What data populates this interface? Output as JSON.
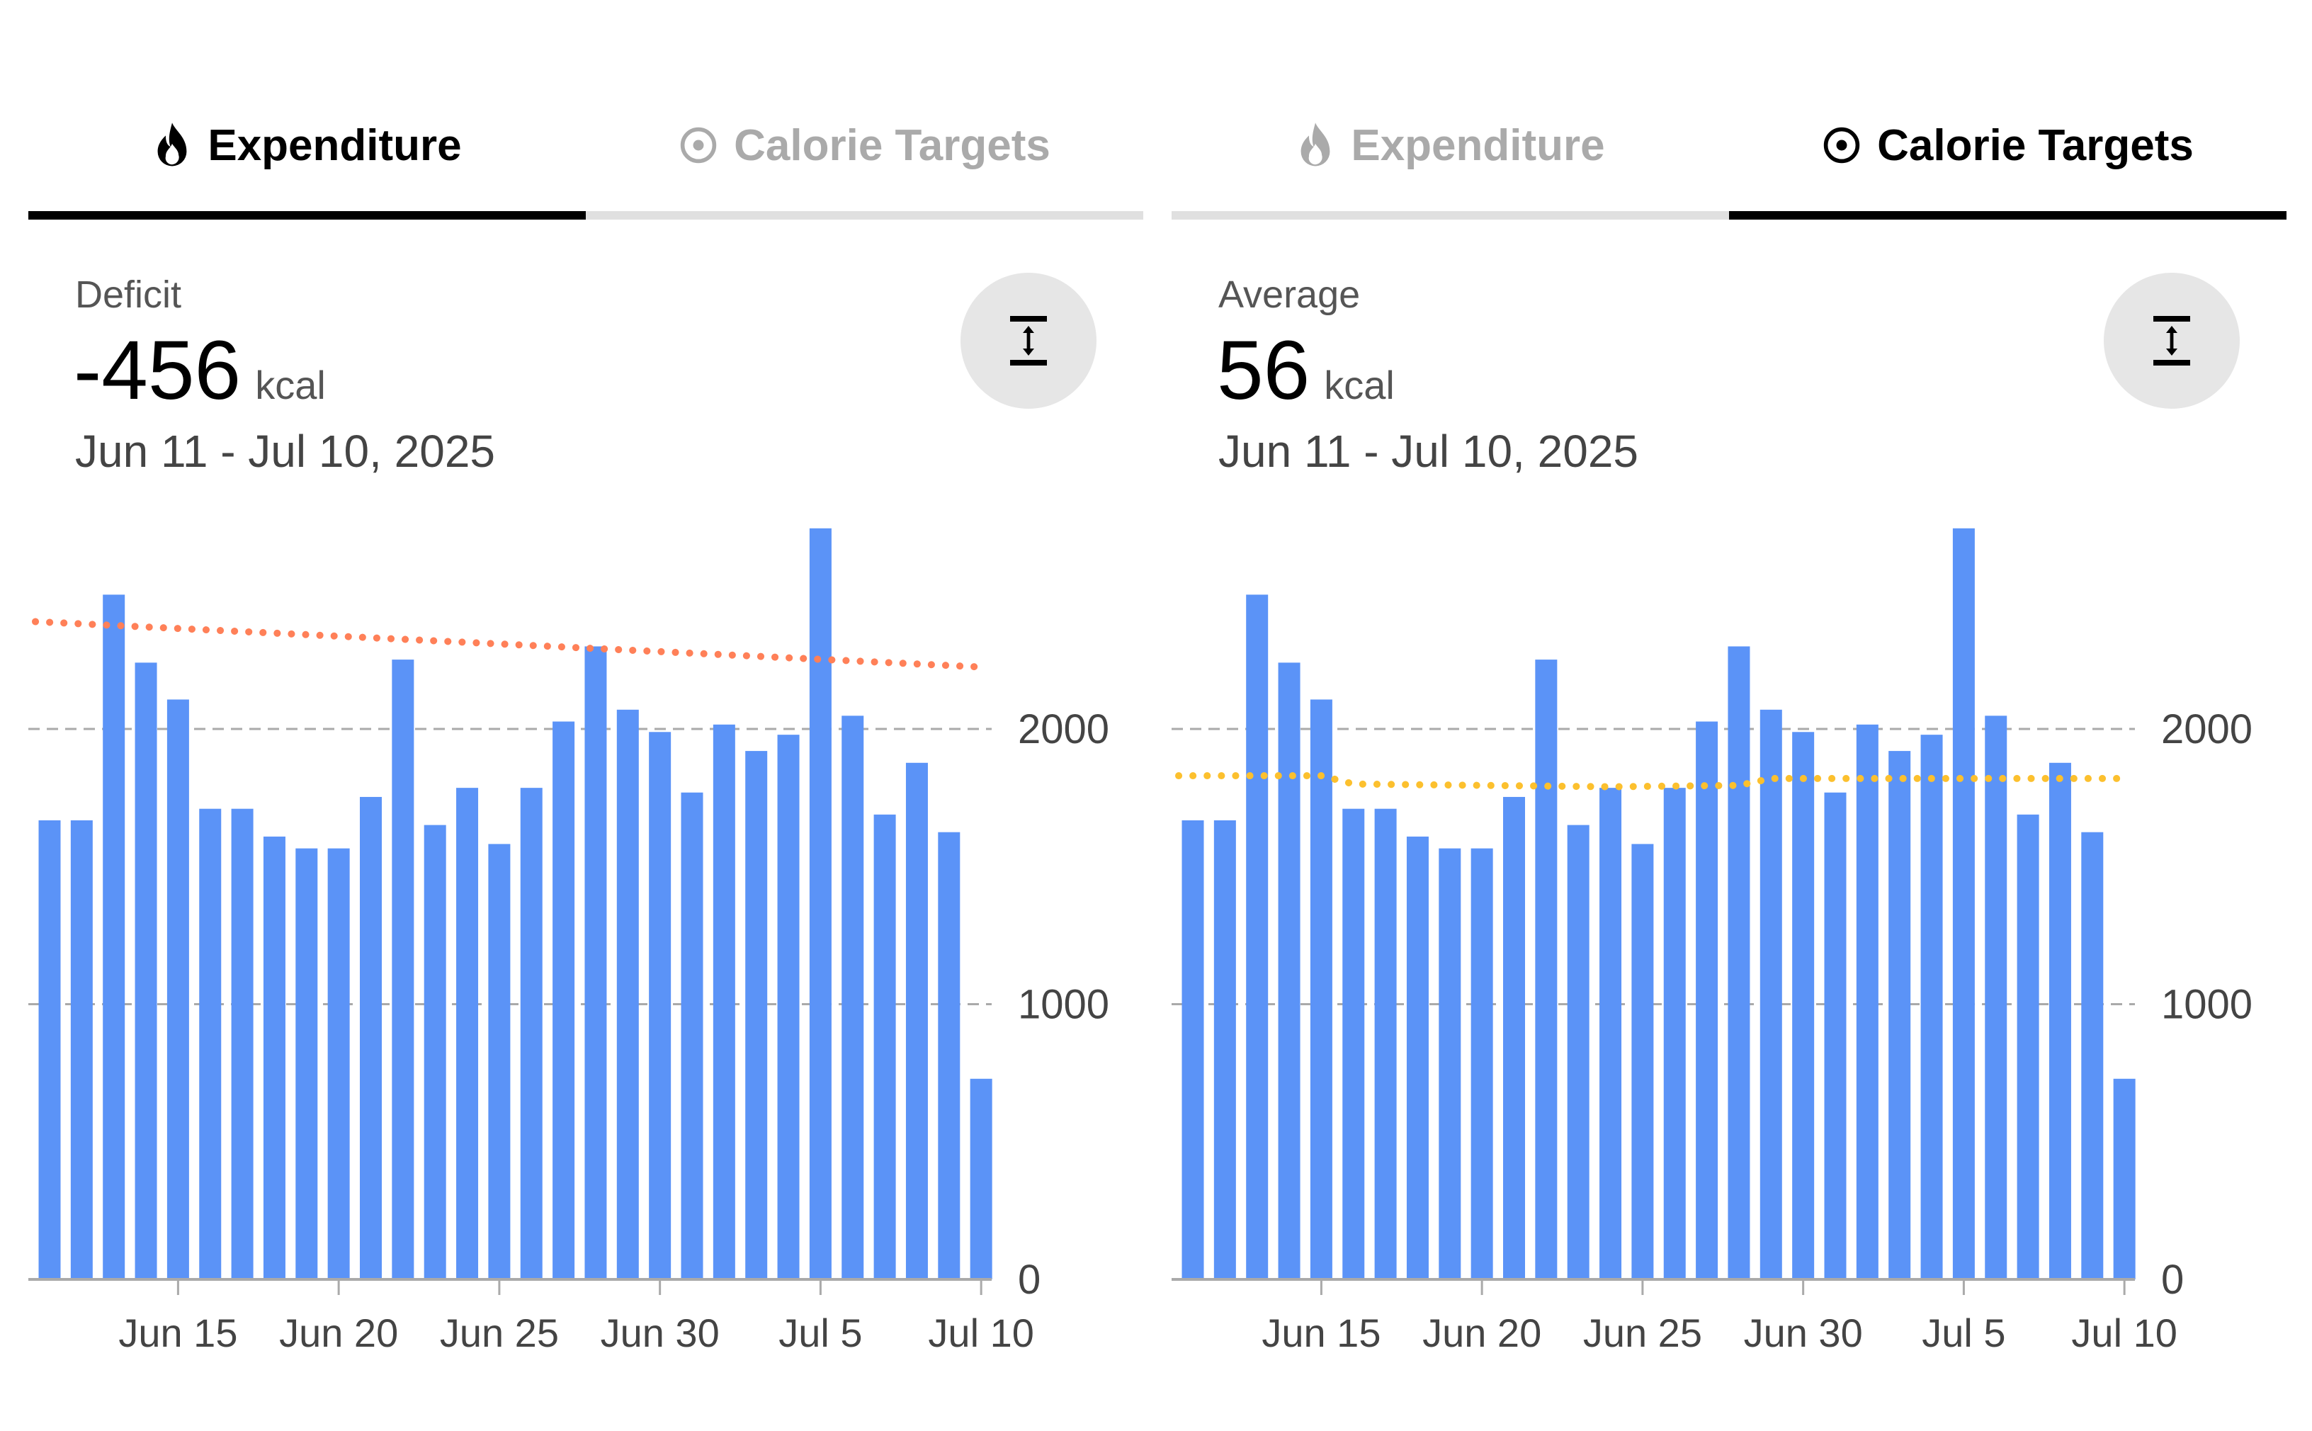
{
  "panels": [
    {
      "tabs": [
        {
          "label": "Expenditure",
          "icon": "flame-icon",
          "active": true
        },
        {
          "label": "Calorie Targets",
          "icon": "target-icon",
          "active": false
        }
      ],
      "stat_label": "Deficit",
      "stat_value": "-456",
      "stat_unit": "kcal",
      "date_range": "Jun 11 - Jul 10, 2025",
      "fit_button_icon": "fit-vertical-icon"
    },
    {
      "tabs": [
        {
          "label": "Expenditure",
          "icon": "flame-icon",
          "active": false
        },
        {
          "label": "Calorie Targets",
          "icon": "target-icon",
          "active": true
        }
      ],
      "stat_label": "Average",
      "stat_value": "56",
      "stat_unit": "kcal",
      "date_range": "Jun 11 - Jul 10, 2025",
      "fit_button_icon": "fit-vertical-icon"
    }
  ],
  "colors": {
    "bar": "#5B93F7",
    "trend_expenditure": "#FF8058",
    "trend_targets": "#FCC02E",
    "active": "#000000",
    "inactive": "#AAAAAA"
  },
  "chart_data": [
    {
      "type": "bar",
      "title": "Expenditure",
      "categories": [
        "Jun 11",
        "Jun 12",
        "Jun 13",
        "Jun 14",
        "Jun 15",
        "Jun 16",
        "Jun 17",
        "Jun 18",
        "Jun 19",
        "Jun 20",
        "Jun 21",
        "Jun 22",
        "Jun 23",
        "Jun 24",
        "Jun 25",
        "Jun 26",
        "Jun 27",
        "Jun 28",
        "Jun 29",
        "Jun 30",
        "Jul 1",
        "Jul 2",
        "Jul 3",
        "Jul 4",
        "Jul 5",
        "Jul 6",
        "Jul 7",
        "Jul 8",
        "Jul 9",
        "Jul 10"
      ],
      "values": [
        1668,
        1668,
        2488,
        2241,
        2107,
        1710,
        1710,
        1609,
        1566,
        1566,
        1753,
        2252,
        1651,
        1786,
        1582,
        1786,
        2027,
        2300,
        2070,
        1989,
        1769,
        2016,
        1920,
        1979,
        2729,
        2048,
        1689,
        1877,
        1625,
        729
      ],
      "trend": {
        "name": "trend",
        "style": "dotted",
        "points": [
          [
            0,
            2390
          ],
          [
            29,
            2225
          ]
        ]
      },
      "x_ticks": [
        {
          "index": 4,
          "label": "Jun 15"
        },
        {
          "index": 9,
          "label": "Jun 20"
        },
        {
          "index": 14,
          "label": "Jun 25"
        },
        {
          "index": 19,
          "label": "Jun 30"
        },
        {
          "index": 24,
          "label": "Jul 5"
        },
        {
          "index": 29,
          "label": "Jul 10"
        }
      ],
      "y_ticks": [
        0,
        1000,
        2000
      ],
      "ylim": [
        0,
        2800
      ],
      "grid": true
    },
    {
      "type": "bar",
      "title": "Calorie Targets",
      "categories": [
        "Jun 11",
        "Jun 12",
        "Jun 13",
        "Jun 14",
        "Jun 15",
        "Jun 16",
        "Jun 17",
        "Jun 18",
        "Jun 19",
        "Jun 20",
        "Jun 21",
        "Jun 22",
        "Jun 23",
        "Jun 24",
        "Jun 25",
        "Jun 26",
        "Jun 27",
        "Jun 28",
        "Jun 29",
        "Jun 30",
        "Jul 1",
        "Jul 2",
        "Jul 3",
        "Jul 4",
        "Jul 5",
        "Jul 6",
        "Jul 7",
        "Jul 8",
        "Jul 9",
        "Jul 10"
      ],
      "values": [
        1668,
        1668,
        2488,
        2241,
        2107,
        1710,
        1710,
        1609,
        1566,
        1566,
        1753,
        2252,
        1651,
        1786,
        1582,
        1786,
        2027,
        2300,
        2070,
        1989,
        1769,
        2016,
        1920,
        1979,
        2729,
        2048,
        1689,
        1877,
        1625,
        729
      ],
      "trend": {
        "name": "target",
        "style": "dotted",
        "points": [
          [
            0,
            1830
          ],
          [
            4,
            1830
          ],
          [
            5,
            1800
          ],
          [
            13,
            1790
          ],
          [
            17,
            1795
          ],
          [
            18,
            1820
          ],
          [
            29,
            1820
          ]
        ]
      },
      "x_ticks": [
        {
          "index": 4,
          "label": "Jun 15"
        },
        {
          "index": 9,
          "label": "Jun 20"
        },
        {
          "index": 14,
          "label": "Jun 25"
        },
        {
          "index": 19,
          "label": "Jun 30"
        },
        {
          "index": 24,
          "label": "Jul 5"
        },
        {
          "index": 29,
          "label": "Jul 10"
        }
      ],
      "y_ticks": [
        0,
        1000,
        2000
      ],
      "ylim": [
        0,
        2800
      ],
      "grid": true
    }
  ]
}
